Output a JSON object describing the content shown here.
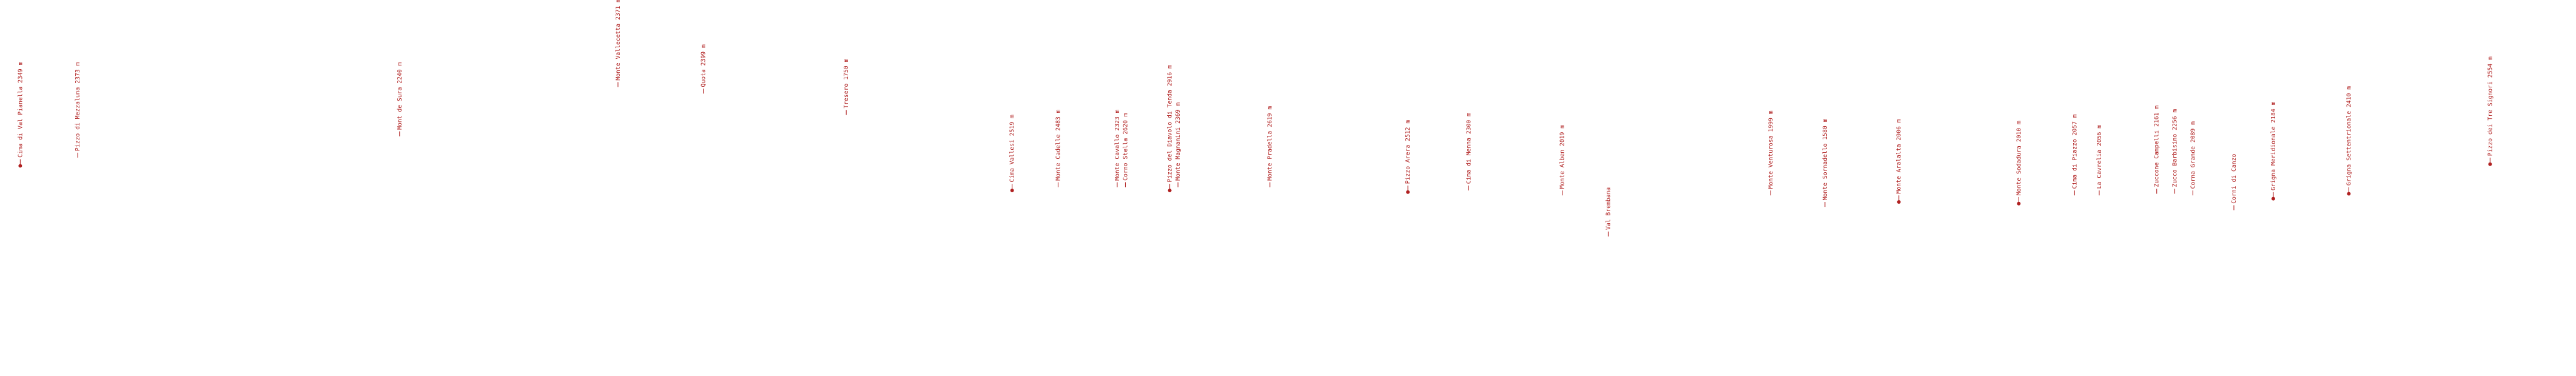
{
  "peaks": [
    {
      "label": "Cima di Val Pianella 2349 m"
    },
    {
      "label": "Pizzo di Mezzaluna 2373 m"
    },
    {
      "label": "Mont de Sura 2240 m"
    },
    {
      "label": "Monte Vallecetta 2371 m"
    },
    {
      "label": "Quota 2399 m"
    },
    {
      "label": "Tresero 1750 m"
    },
    {
      "label": "Cima Vallesi 2519 m"
    },
    {
      "label": "Monte Cadelle 2483 m"
    },
    {
      "label": "Monte Cavallo 2323 m"
    },
    {
      "label": "Corno Stella 2620 m"
    },
    {
      "label": "Pizzo del Diavolo di Tenda 2916 m"
    },
    {
      "label": "Monte Magnanini 2369 m"
    },
    {
      "label": "Monte Pradella 2619 m"
    },
    {
      "label": "Pizzo Arera 2512 m"
    },
    {
      "label": "Cima di Menna 2300 m"
    },
    {
      "label": "Monte Alben 2019 m"
    },
    {
      "label": "Val Brembana"
    },
    {
      "label": "Monte Venturosa 1999 m"
    },
    {
      "label": "Monte Sornadello 1580 m"
    },
    {
      "label": "Monte Aralalta 2006 m"
    },
    {
      "label": "Monte Sodadura 2010 m"
    },
    {
      "label": "Cima di Piazzo 2057 m"
    },
    {
      "label": "La Cavrelia 2056 m"
    },
    {
      "label": "Zuccone Campelli 2161 m"
    },
    {
      "label": "Zucco Barbisino 2256 m"
    },
    {
      "label": "Corna Grande 2089 m"
    },
    {
      "label": "Corni di Canzo"
    },
    {
      "label": "Grigna Meridionale 2184 m"
    },
    {
      "label": "Grigna Settentrionale 2410 m"
    },
    {
      "label": "Pizzo dei Tre Signori 2554 m"
    }
  ]
}
